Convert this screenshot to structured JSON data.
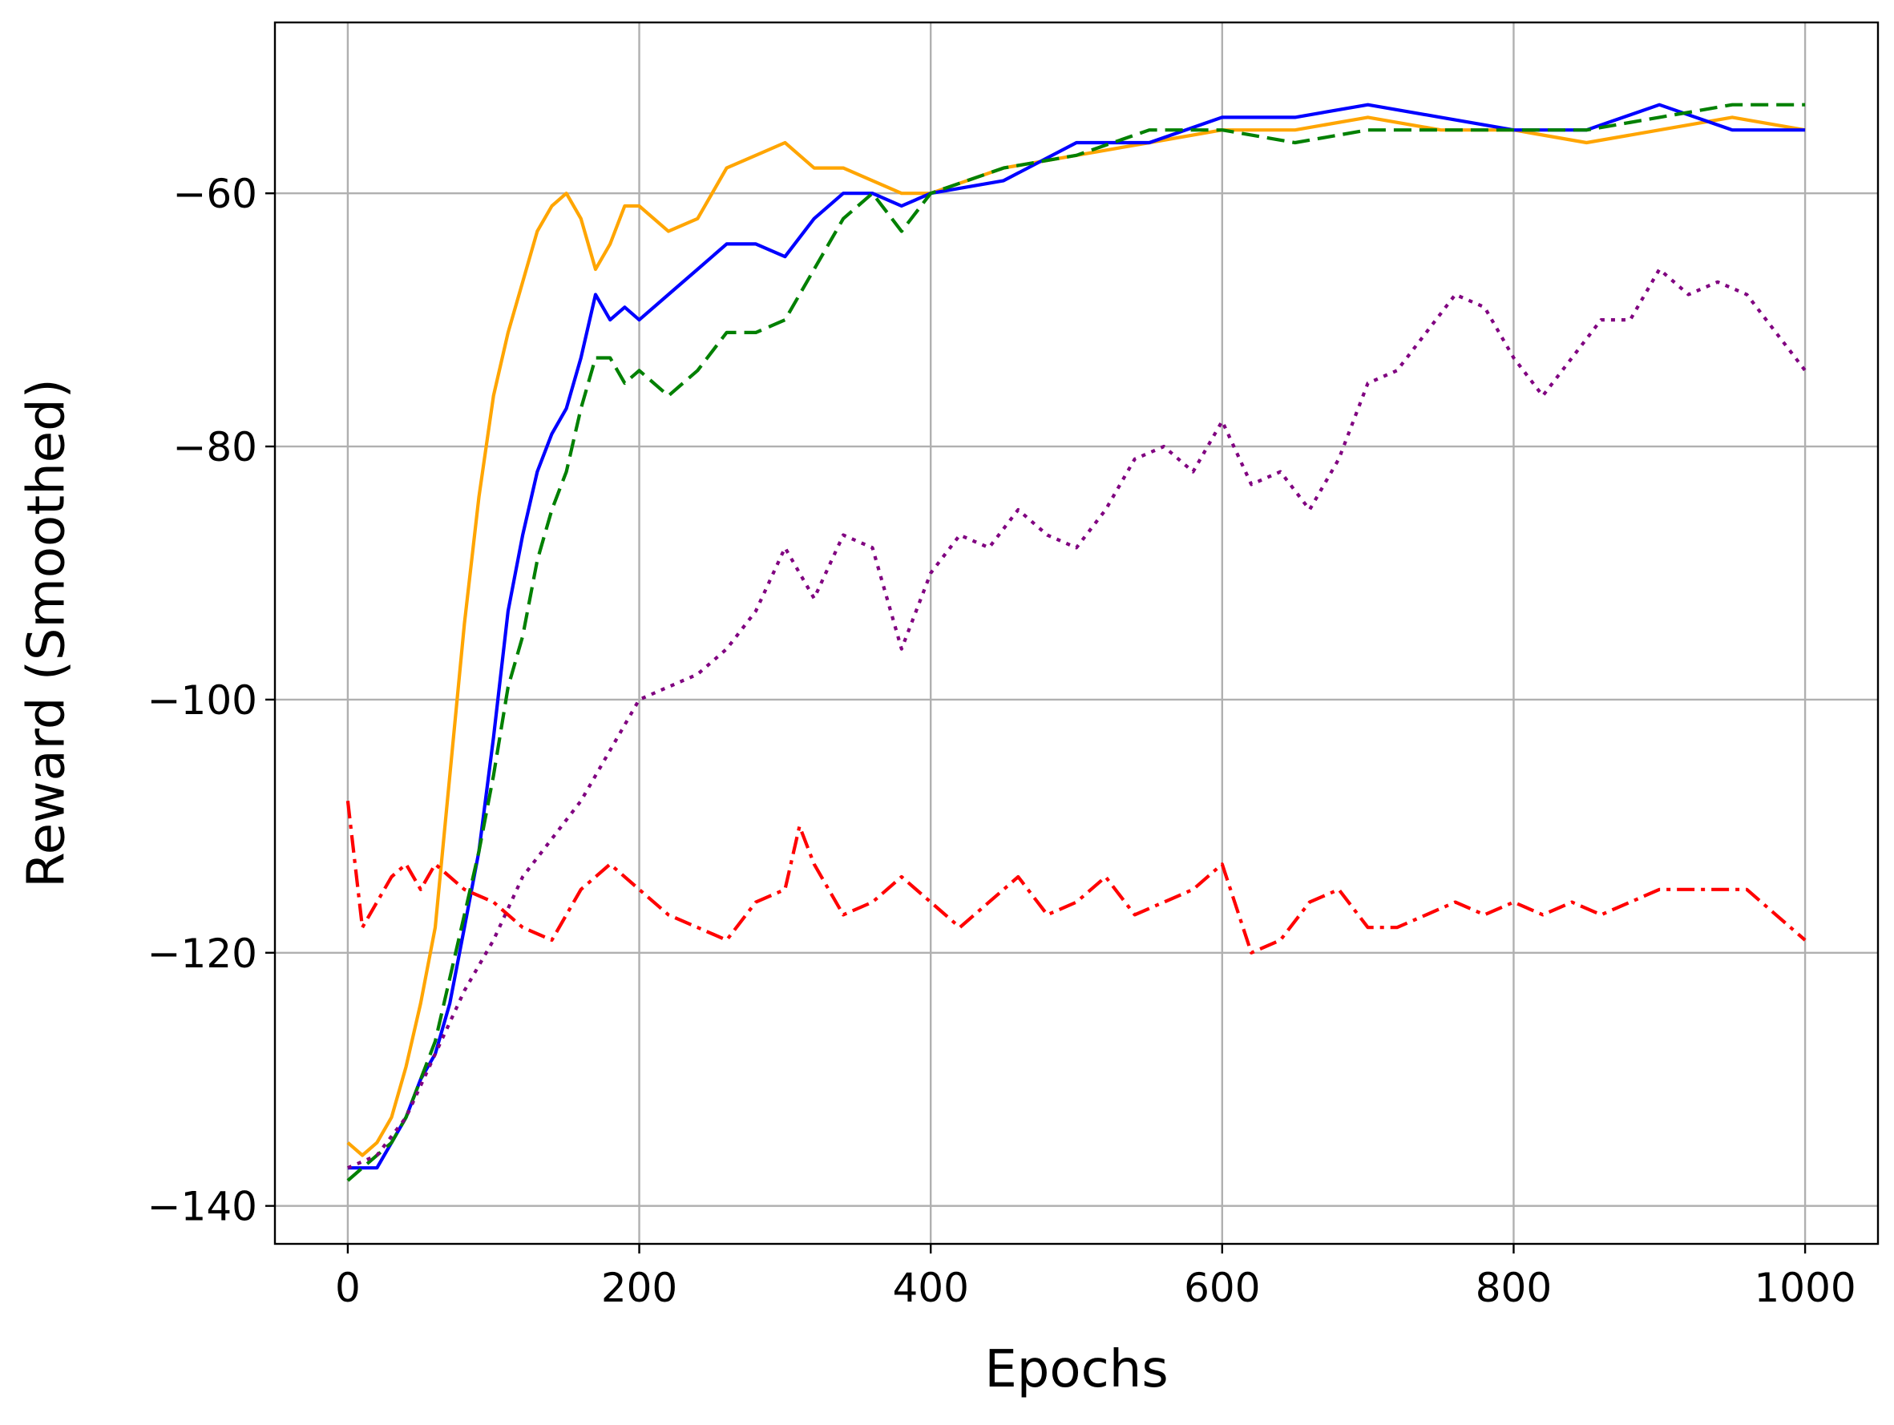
{
  "chart_data": {
    "type": "line",
    "title": "",
    "xlabel": "Epochs",
    "ylabel": "Reward (Smoothed)",
    "xlim": [
      -50,
      1050
    ],
    "ylim": [
      -143,
      -46.5
    ],
    "xticks": [
      0,
      200,
      400,
      600,
      800,
      1000
    ],
    "yticks": [
      -140,
      -120,
      -100,
      -80,
      -60
    ],
    "xtick_labels": [
      "0",
      "200",
      "400",
      "600",
      "800",
      "1000"
    ],
    "ytick_labels": [
      "−140",
      "−120",
      "−100",
      "−80",
      "−60"
    ],
    "grid": true,
    "legend": "none",
    "series": [
      {
        "color": "#ffa500",
        "style": "solid",
        "x": [
          0,
          10,
          20,
          30,
          40,
          50,
          60,
          70,
          80,
          90,
          100,
          110,
          120,
          130,
          140,
          150,
          160,
          170,
          180,
          190,
          200,
          220,
          240,
          260,
          280,
          300,
          320,
          340,
          360,
          380,
          400,
          450,
          500,
          550,
          600,
          650,
          700,
          750,
          800,
          850,
          900,
          950,
          1000
        ],
        "y": [
          -135,
          -136,
          -135,
          -133,
          -129,
          -124,
          -118,
          -106,
          -94,
          -84,
          -76,
          -71,
          -67,
          -63,
          -61,
          -60,
          -62,
          -66,
          -64,
          -61,
          -61,
          -63,
          -62,
          -58,
          -57,
          -56,
          -58,
          -58,
          -59,
          -60,
          -60,
          -58,
          -57,
          -56,
          -55,
          -55,
          -54,
          -55,
          -55,
          -56,
          -55,
          -54,
          -55
        ]
      },
      {
        "color": "#0000ff",
        "style": "solid",
        "x": [
          0,
          10,
          20,
          30,
          40,
          50,
          60,
          70,
          80,
          90,
          100,
          110,
          120,
          130,
          140,
          150,
          160,
          170,
          180,
          190,
          200,
          220,
          240,
          260,
          280,
          300,
          320,
          340,
          360,
          380,
          400,
          450,
          500,
          550,
          600,
          650,
          700,
          750,
          800,
          850,
          900,
          950,
          1000
        ],
        "y": [
          -137,
          -137,
          -137,
          -135,
          -133,
          -130,
          -128,
          -124,
          -118,
          -112,
          -103,
          -93,
          -87,
          -82,
          -79,
          -77,
          -73,
          -68,
          -70,
          -69,
          -70,
          -68,
          -66,
          -64,
          -64,
          -65,
          -62,
          -60,
          -60,
          -61,
          -60,
          -59,
          -56,
          -56,
          -54,
          -54,
          -53,
          -54,
          -55,
          -55,
          -53,
          -55,
          -55
        ]
      },
      {
        "color": "#008000",
        "style": "dashed",
        "x": [
          0,
          10,
          20,
          30,
          40,
          50,
          60,
          70,
          80,
          90,
          100,
          110,
          120,
          130,
          140,
          150,
          160,
          170,
          180,
          190,
          200,
          220,
          240,
          260,
          280,
          300,
          320,
          340,
          360,
          380,
          400,
          450,
          500,
          550,
          600,
          650,
          700,
          750,
          800,
          850,
          900,
          950,
          1000
        ],
        "y": [
          -138,
          -137,
          -136,
          -135,
          -133,
          -130,
          -127,
          -122,
          -117,
          -112,
          -106,
          -99,
          -95,
          -89,
          -85,
          -82,
          -77,
          -73,
          -73,
          -75,
          -74,
          -76,
          -74,
          -71,
          -71,
          -70,
          -66,
          -62,
          -60,
          -63,
          -60,
          -58,
          -57,
          -55,
          -55,
          -56,
          -55,
          -55,
          -55,
          -55,
          -54,
          -53,
          -53
        ]
      },
      {
        "color": "#800080",
        "style": "dotted",
        "x": [
          0,
          20,
          40,
          60,
          80,
          100,
          120,
          140,
          160,
          180,
          200,
          220,
          240,
          260,
          280,
          300,
          320,
          340,
          360,
          380,
          400,
          420,
          440,
          460,
          480,
          500,
          520,
          540,
          560,
          580,
          600,
          620,
          640,
          660,
          680,
          700,
          720,
          740,
          760,
          780,
          800,
          820,
          840,
          860,
          880,
          900,
          920,
          940,
          960,
          980,
          1000
        ],
        "y": [
          -137,
          -136,
          -133,
          -128,
          -123,
          -119,
          -114,
          -111,
          -108,
          -104,
          -100,
          -99,
          -98,
          -96,
          -93,
          -88,
          -92,
          -87,
          -88,
          -96,
          -90,
          -87,
          -88,
          -85,
          -87,
          -88,
          -85,
          -81,
          -80,
          -82,
          -78,
          -83,
          -82,
          -85,
          -81,
          -75,
          -74,
          -71,
          -68,
          -69,
          -73,
          -76,
          -73,
          -70,
          -70,
          -66,
          -68,
          -67,
          -68,
          -71,
          -74
        ]
      },
      {
        "color": "#ff0000",
        "style": "dashdot",
        "x": [
          0,
          10,
          20,
          30,
          40,
          50,
          60,
          80,
          100,
          120,
          140,
          160,
          180,
          200,
          220,
          240,
          260,
          280,
          300,
          310,
          320,
          340,
          360,
          380,
          400,
          420,
          440,
          460,
          480,
          500,
          520,
          540,
          560,
          580,
          600,
          620,
          640,
          660,
          680,
          700,
          720,
          740,
          760,
          780,
          800,
          820,
          840,
          860,
          880,
          900,
          920,
          940,
          960,
          980,
          1000
        ],
        "y": [
          -108,
          -118,
          -116,
          -114,
          -113,
          -115,
          -113,
          -115,
          -116,
          -118,
          -119,
          -115,
          -113,
          -115,
          -117,
          -118,
          -119,
          -116,
          -115,
          -110,
          -113,
          -117,
          -116,
          -114,
          -116,
          -118,
          -116,
          -114,
          -117,
          -116,
          -114,
          -117,
          -116,
          -115,
          -113,
          -120,
          -119,
          -116,
          -115,
          -118,
          -118,
          -117,
          -116,
          -117,
          -116,
          -117,
          -116,
          -117,
          -116,
          -115,
          -115,
          -115,
          -115,
          -117,
          -119
        ]
      }
    ]
  }
}
